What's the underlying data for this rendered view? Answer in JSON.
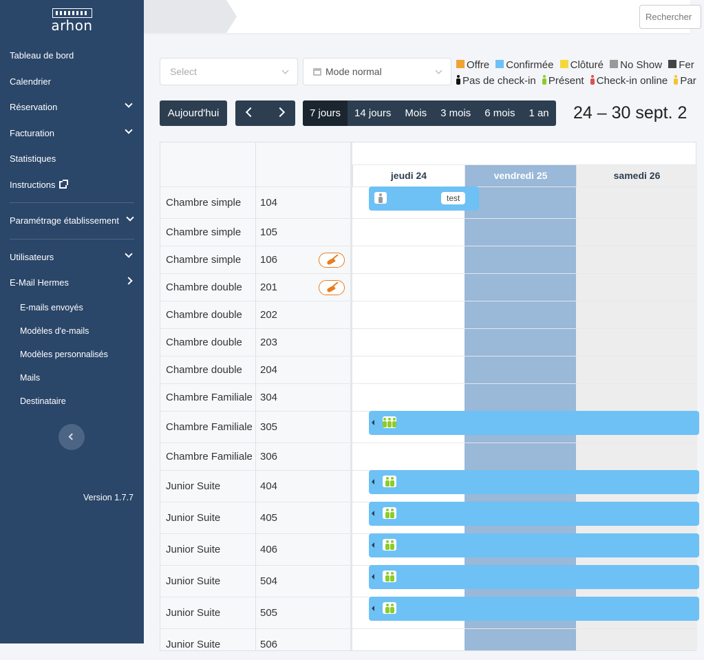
{
  "sidebar": {
    "logo_text": "arhon",
    "items": [
      {
        "label": "Tableau de bord"
      },
      {
        "label": "Calendrier"
      },
      {
        "label": "Réservation"
      },
      {
        "label": "Facturation"
      },
      {
        "label": "Statistiques"
      },
      {
        "label": "Instructions"
      },
      {
        "label": "Paramétrage établissement"
      },
      {
        "label": "Utilisateurs"
      },
      {
        "label": "E-Mail Hermes"
      }
    ],
    "sub_items": [
      {
        "label": "E-mails envoyés"
      },
      {
        "label": "Modèles d'e-mails"
      },
      {
        "label": "Modèles personnalisés"
      },
      {
        "label": "Mails"
      },
      {
        "label": "Destinataire"
      }
    ],
    "version": "Version 1.7.7"
  },
  "topbar": {
    "search_placeholder": "Rechercher"
  },
  "filters": {
    "select_placeholder": "Select",
    "mode_label": "Mode normal"
  },
  "legend": {
    "status": [
      {
        "label": "Offre",
        "color": "#f0a235"
      },
      {
        "label": "Confirmée",
        "color": "#6ec1f5"
      },
      {
        "label": "Clôturé",
        "color": "#f4d83b"
      },
      {
        "label": "No Show",
        "color": "#999999"
      },
      {
        "label": "Fer",
        "color": "#444444"
      }
    ],
    "checkin": [
      {
        "label": "Pas de check-in",
        "color": "#111111"
      },
      {
        "label": "Présent",
        "color": "#8ccc2a"
      },
      {
        "label": "Check-in online",
        "color": "#d9534f"
      },
      {
        "label": "Par",
        "color": "#f4c430"
      }
    ]
  },
  "toolbar": {
    "today_label": "Aujourd'hui",
    "views": [
      "7 jours",
      "14 jours",
      "Mois",
      "3 mois",
      "6 mois",
      "1 an"
    ],
    "active_view": "7 jours",
    "date_range": "24 – 30 sept. 2"
  },
  "calendar": {
    "days": [
      {
        "label": "jeudi 24"
      },
      {
        "label": "vendredi 25"
      },
      {
        "label": "samedi 26"
      }
    ],
    "rooms": [
      {
        "type": "Chambre simple",
        "number": "104"
      },
      {
        "type": "Chambre simple",
        "number": "105"
      },
      {
        "type": "Chambre simple",
        "number": "106"
      },
      {
        "type": "Chambre double",
        "number": "201"
      },
      {
        "type": "Chambre double",
        "number": "202"
      },
      {
        "type": "Chambre double",
        "number": "203"
      },
      {
        "type": "Chambre double",
        "number": "204"
      },
      {
        "type": "Chambre Familiale",
        "number": "304"
      },
      {
        "type": "Chambre Familiale",
        "number": "305"
      },
      {
        "type": "Chambre Familiale",
        "number": "306"
      },
      {
        "type": "Junior Suite",
        "number": "404"
      },
      {
        "type": "Junior Suite",
        "number": "405"
      },
      {
        "type": "Junior Suite",
        "number": "406"
      },
      {
        "type": "Junior Suite",
        "number": "504"
      },
      {
        "type": "Junior Suite",
        "number": "505"
      },
      {
        "type": "Junior Suite",
        "number": "506"
      }
    ],
    "booking_tag": "test"
  }
}
